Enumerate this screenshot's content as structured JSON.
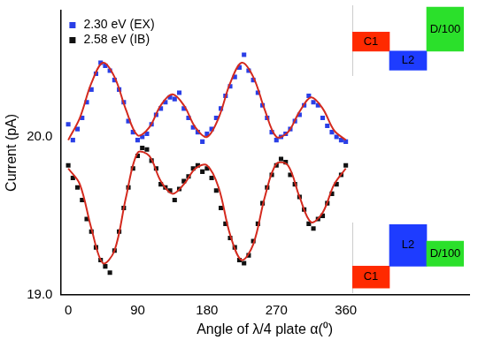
{
  "chart_data": [
    {
      "type": "scatter",
      "x_label": "Angle of λ/4 plate α(⁰)",
      "y_label": "Current (pA)",
      "xlim": [
        -10,
        520
      ],
      "xticks": [
        0,
        90,
        180,
        270,
        360
      ],
      "ylim": [
        19.0,
        20.8
      ],
      "yticks": [
        {
          "value": 19,
          "label": "19.0"
        },
        {
          "value": 20,
          "label": "20.0"
        }
      ],
      "grid": false,
      "legend": "upper left",
      "series": [
        {
          "name": "2.30 eV (EX)",
          "color": "#2a3fe6",
          "marker": "square",
          "x": [
            0,
            6,
            12,
            18,
            24,
            30,
            36,
            42,
            48,
            54,
            60,
            66,
            72,
            78,
            84,
            90,
            96,
            102,
            108,
            114,
            120,
            126,
            132,
            138,
            144,
            150,
            156,
            162,
            168,
            174,
            180,
            186,
            192,
            198,
            204,
            210,
            216,
            222,
            228,
            234,
            240,
            246,
            252,
            258,
            264,
            270,
            276,
            282,
            288,
            294,
            300,
            306,
            312,
            318,
            324,
            330,
            336,
            342,
            348,
            354,
            360
          ],
          "values": [
            20.08,
            19.98,
            20.05,
            20.12,
            20.22,
            20.3,
            20.4,
            20.47,
            20.45,
            20.42,
            20.36,
            20.3,
            20.22,
            20.1,
            20.03,
            19.98,
            20.0,
            20.02,
            20.08,
            20.14,
            20.18,
            20.22,
            20.25,
            20.24,
            20.28,
            20.18,
            20.12,
            20.06,
            20.03,
            19.97,
            20.02,
            20.05,
            20.12,
            20.18,
            20.26,
            20.32,
            20.38,
            20.44,
            20.52,
            20.42,
            20.36,
            20.28,
            20.2,
            20.12,
            20.03,
            19.98,
            20.0,
            20.02,
            20.05,
            20.1,
            20.14,
            20.2,
            20.26,
            20.22,
            20.2,
            20.12,
            20.07,
            20.03,
            20.0,
            19.98,
            19.97
          ]
        },
        {
          "name": "2.58 eV (IB)",
          "color": "#111111",
          "marker": "square",
          "x": [
            0,
            6,
            12,
            18,
            24,
            30,
            36,
            42,
            48,
            54,
            60,
            66,
            72,
            78,
            84,
            90,
            96,
            102,
            108,
            114,
            120,
            126,
            132,
            138,
            144,
            150,
            156,
            162,
            168,
            174,
            180,
            186,
            192,
            198,
            204,
            210,
            216,
            222,
            228,
            234,
            240,
            246,
            252,
            258,
            264,
            270,
            276,
            282,
            288,
            294,
            300,
            306,
            312,
            318,
            324,
            330,
            336,
            342,
            348,
            354,
            360
          ],
          "values": [
            19.82,
            19.74,
            19.68,
            19.6,
            19.48,
            19.4,
            19.3,
            19.22,
            19.18,
            19.14,
            19.28,
            19.4,
            19.55,
            19.68,
            19.8,
            19.88,
            19.93,
            19.92,
            19.85,
            19.8,
            19.7,
            19.68,
            19.66,
            19.6,
            19.67,
            19.72,
            19.75,
            19.8,
            19.82,
            19.78,
            19.8,
            19.74,
            19.66,
            19.55,
            19.45,
            19.36,
            19.3,
            19.22,
            19.2,
            19.25,
            19.34,
            19.45,
            19.58,
            19.68,
            19.76,
            19.82,
            19.86,
            19.84,
            19.76,
            19.7,
            19.62,
            19.54,
            19.45,
            19.42,
            19.48,
            19.5,
            19.58,
            19.64,
            19.7,
            19.76,
            19.82
          ]
        },
        {
          "type": "line",
          "color": "#d42a1e",
          "line_style": "solid",
          "x": [
            0,
            15,
            30,
            45,
            60,
            75,
            90,
            105,
            120,
            135,
            150,
            165,
            180,
            195,
            210,
            225,
            240,
            255,
            270,
            285,
            300,
            315,
            330,
            345,
            360
          ],
          "values": [
            19.98,
            20.12,
            20.34,
            20.47,
            20.38,
            20.17,
            20.01,
            20.06,
            20.2,
            20.27,
            20.2,
            20.06,
            20.0,
            20.12,
            20.34,
            20.47,
            20.38,
            20.17,
            20.0,
            20.03,
            20.16,
            20.25,
            20.18,
            20.04,
            19.98
          ]
        },
        {
          "type": "line",
          "color": "#d42a1e",
          "line_style": "solid",
          "x": [
            0,
            15,
            30,
            45,
            60,
            75,
            90,
            105,
            120,
            135,
            150,
            165,
            180,
            195,
            210,
            225,
            240,
            255,
            270,
            285,
            300,
            315,
            330,
            345,
            360
          ],
          "values": [
            19.8,
            19.7,
            19.42,
            19.2,
            19.28,
            19.62,
            19.9,
            19.88,
            19.72,
            19.64,
            19.7,
            19.8,
            19.82,
            19.68,
            19.38,
            19.22,
            19.32,
            19.62,
            19.83,
            19.82,
            19.62,
            19.46,
            19.52,
            19.7,
            19.8
          ]
        }
      ]
    },
    {
      "type": "bar",
      "categories": [
        "C1",
        "L2",
        "D/100"
      ],
      "values": [
        1,
        -1,
        2.3
      ],
      "colors": [
        "#ff2a00",
        "#1e3cff",
        "#2be02b"
      ],
      "ylim": [
        -1.3,
        2.4
      ],
      "tick_labels": false
    },
    {
      "type": "bar",
      "categories": [
        "C1",
        "L2",
        "D/100"
      ],
      "values": [
        -1.05,
        2.0,
        1.2
      ],
      "colors": [
        "#ff2a00",
        "#1e3cff",
        "#2be02b"
      ],
      "ylim": [
        -1.3,
        2.1
      ],
      "tick_labels": false
    }
  ]
}
